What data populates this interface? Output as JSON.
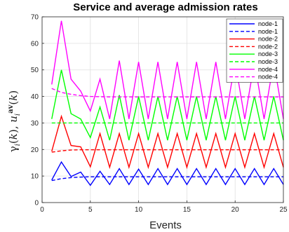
{
  "chart_data": {
    "type": "line",
    "title": "Service and average admission rates",
    "xlabel": "Events",
    "ylabel": "γ_i(k), u_i^av(k)",
    "x": [
      1,
      2,
      3,
      4,
      5,
      6,
      7,
      8,
      9,
      10,
      11,
      12,
      13,
      14,
      15,
      16,
      17,
      18,
      19,
      20,
      21,
      22,
      23,
      24,
      25
    ],
    "xlim": [
      0,
      25
    ],
    "ylim": [
      0,
      70
    ],
    "xticks": [
      "0",
      "5",
      "10",
      "15",
      "20",
      "25"
    ],
    "yticks": [
      "0",
      "10",
      "20",
      "30",
      "40",
      "50",
      "60",
      "70"
    ],
    "grid": true,
    "legend_position": "top-right",
    "series": [
      {
        "name": "node-1",
        "color": "#0000ff",
        "style": "solid",
        "values": [
          8.5,
          15.3,
          9.8,
          11.5,
          6.5,
          11.8,
          6.8,
          12.8,
          6.8,
          12.6,
          6.8,
          12.8,
          6.8,
          12.8,
          6.8,
          12.8,
          6.8,
          12.8,
          6.8,
          12.8,
          6.8,
          12.8,
          6.8,
          12.8,
          6.8
        ]
      },
      {
        "name": "node-1",
        "color": "#0000ff",
        "style": "dashed",
        "values": [
          8.3,
          9.0,
          9.4,
          9.6,
          9.7,
          9.7,
          9.7,
          9.7,
          9.7,
          9.7,
          9.7,
          9.7,
          9.7,
          9.7,
          9.7,
          9.7,
          9.7,
          9.7,
          9.7,
          9.7,
          9.7,
          9.7,
          9.7,
          9.7,
          9.7
        ]
      },
      {
        "name": "node-2",
        "color": "#ff0000",
        "style": "solid",
        "values": [
          19.3,
          32.5,
          21.5,
          21.0,
          13.5,
          26.0,
          13.3,
          26.0,
          13.3,
          26.0,
          13.3,
          26.0,
          13.3,
          26.0,
          13.3,
          26.0,
          13.3,
          26.0,
          13.3,
          26.0,
          13.3,
          26.0,
          13.3,
          26.0,
          13.3
        ]
      },
      {
        "name": "node-2",
        "color": "#ff0000",
        "style": "dashed",
        "values": [
          19.0,
          19.5,
          19.8,
          19.9,
          19.9,
          19.9,
          19.9,
          19.9,
          19.9,
          19.9,
          19.9,
          19.9,
          19.9,
          19.9,
          19.9,
          19.9,
          19.9,
          19.9,
          19.9,
          19.9,
          19.9,
          19.9,
          19.9,
          19.9,
          19.9
        ]
      },
      {
        "name": "node-3",
        "color": "#00ff00",
        "style": "solid",
        "values": [
          31.5,
          50.0,
          33.5,
          31.5,
          24.5,
          36.0,
          23.5,
          40.5,
          23.5,
          40.0,
          23.5,
          40.0,
          23.5,
          40.0,
          23.5,
          40.0,
          23.5,
          40.0,
          23.5,
          40.0,
          23.5,
          40.0,
          23.5,
          40.0,
          23.5
        ]
      },
      {
        "name": "node-3",
        "color": "#00ff00",
        "style": "dashed",
        "values": [
          30.0,
          30.0,
          30.0,
          30.0,
          30.0,
          30.0,
          30.0,
          30.0,
          30.0,
          30.0,
          30.0,
          30.0,
          30.0,
          30.0,
          30.0,
          30.0,
          30.0,
          30.0,
          30.0,
          30.0,
          30.0,
          30.0,
          30.0,
          30.0,
          30.0
        ]
      },
      {
        "name": "node-4",
        "color": "#ff00ff",
        "style": "solid",
        "values": [
          44.5,
          68.5,
          46.5,
          42.0,
          34.5,
          46.5,
          31.5,
          53.5,
          31.5,
          53.0,
          31.5,
          53.0,
          31.5,
          53.0,
          31.5,
          53.0,
          31.5,
          53.0,
          31.5,
          53.0,
          31.5,
          53.0,
          31.5,
          53.0,
          31.5
        ]
      },
      {
        "name": "node-4",
        "color": "#ff00ff",
        "style": "dashed",
        "values": [
          43.0,
          41.5,
          40.8,
          40.3,
          40.0,
          39.9,
          39.8,
          39.8,
          39.8,
          39.8,
          39.8,
          39.8,
          39.8,
          39.8,
          39.8,
          39.8,
          39.8,
          39.8,
          39.8,
          39.8,
          39.8,
          39.8,
          39.8,
          39.8,
          39.8
        ]
      }
    ]
  }
}
